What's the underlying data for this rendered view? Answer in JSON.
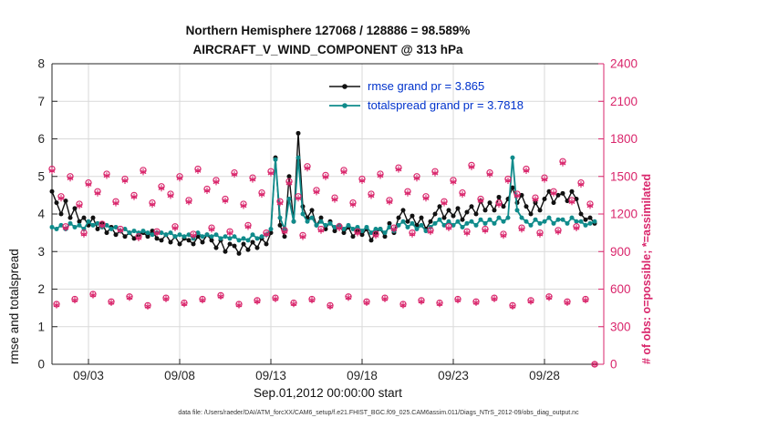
{
  "header": {
    "title_line1": "Northern Hemisphere 127068 / 128886 = 98.589%",
    "title_line2": "AIRCRAFT_V_WIND_COMPONENT @ 313 hPa"
  },
  "legend": {
    "rmse_label": "rmse grand pr = 3.865",
    "totalspread_label": "totalspread grand pr = 3.7818"
  },
  "axes": {
    "left_label": "rmse and totalspread",
    "right_label": "# of obs: o=possible; *=assimilated",
    "x_label": "Sep.01,2012 00:00:00 start",
    "left_ticks": [
      0,
      1,
      2,
      3,
      4,
      5,
      6,
      7,
      8
    ],
    "right_ticks": [
      0,
      300,
      600,
      900,
      1200,
      1500,
      1800,
      2100,
      2400
    ],
    "x_tick_days": [
      3,
      8,
      13,
      18,
      23,
      28
    ],
    "x_tick_labels": [
      "09/03",
      "09/08",
      "09/13",
      "09/18",
      "09/23",
      "09/28"
    ]
  },
  "footer": {
    "text": "data file: /Users/raeder/DAI/ATM_forcXX/CAM6_setup/f.e21.FHIST_BGC.f09_025.CAM6assim.011/Diags_NTrS_2012-09/obs_diag_output.nc"
  },
  "colors": {
    "rmse": "#111111",
    "totalspread": "#0f8b8b",
    "obs": "#d9256b",
    "legend_text": "#0033cc",
    "grid": "#d9d9d9",
    "axis": "#262626"
  },
  "chart_data": {
    "type": "line",
    "title": "Northern Hemisphere 127068 / 128886 = 98.589% — AIRCRAFT_V_WIND_COMPONENT @ 313 hPa",
    "x_axis": "time, Sep.01,2012 00:00:00 start, 6-hourly",
    "x_range_days": [
      1,
      31.25
    ],
    "x_start_day": 1,
    "x_step_days": 0.25,
    "left_ylim": [
      0,
      8
    ],
    "right_ylim": [
      0,
      2400
    ],
    "grid": true,
    "legend_position": "top-center-inside",
    "series": [
      {
        "name": "rmse",
        "axis": "left",
        "marker": "filled-circle",
        "color": "#111111",
        "grand_mean": 3.865,
        "values": [
          4.6,
          4.3,
          4.0,
          4.35,
          3.9,
          4.15,
          3.8,
          3.9,
          3.7,
          3.9,
          3.6,
          3.75,
          3.5,
          3.65,
          3.45,
          3.55,
          3.4,
          3.5,
          3.35,
          3.45,
          3.5,
          3.4,
          3.55,
          3.35,
          3.3,
          3.45,
          3.25,
          3.4,
          3.2,
          3.35,
          3.3,
          3.2,
          3.4,
          3.25,
          3.45,
          3.3,
          3.1,
          3.3,
          3.0,
          3.2,
          3.15,
          2.95,
          3.2,
          3.05,
          3.25,
          3.1,
          3.35,
          3.2,
          3.5,
          5.5,
          3.7,
          3.4,
          5.0,
          3.8,
          6.15,
          4.2,
          3.9,
          4.1,
          3.7,
          3.9,
          3.6,
          3.8,
          3.55,
          3.7,
          3.5,
          3.65,
          3.4,
          3.55,
          3.45,
          3.6,
          3.3,
          3.5,
          3.6,
          3.4,
          3.75,
          3.5,
          3.9,
          4.1,
          3.8,
          3.95,
          3.7,
          3.9,
          3.6,
          3.8,
          4.0,
          4.2,
          3.9,
          4.1,
          3.95,
          4.15,
          3.85,
          4.05,
          4.2,
          4.0,
          4.35,
          4.1,
          4.3,
          4.1,
          4.45,
          4.2,
          4.4,
          4.7,
          4.3,
          4.5,
          4.2,
          4.0,
          4.3,
          4.1,
          4.4,
          4.6,
          4.3,
          4.5,
          4.55,
          4.35,
          4.6,
          4.4,
          4.0,
          3.85,
          3.9,
          3.75
        ]
      },
      {
        "name": "totalspread",
        "axis": "left",
        "marker": "filled-circle",
        "color": "#0f8b8b",
        "grand_mean": 3.7818,
        "values": [
          3.65,
          3.6,
          3.7,
          3.6,
          3.75,
          3.65,
          3.7,
          3.6,
          3.8,
          3.7,
          3.75,
          3.65,
          3.7,
          3.6,
          3.65,
          3.55,
          3.6,
          3.5,
          3.55,
          3.5,
          3.55,
          3.5,
          3.45,
          3.5,
          3.5,
          3.45,
          3.5,
          3.4,
          3.45,
          3.4,
          3.45,
          3.35,
          3.5,
          3.4,
          3.45,
          3.4,
          3.45,
          3.35,
          3.4,
          3.35,
          3.4,
          3.3,
          3.35,
          3.3,
          3.45,
          3.35,
          3.4,
          3.45,
          3.6,
          5.45,
          3.9,
          3.6,
          4.4,
          3.8,
          5.5,
          4.0,
          3.8,
          3.9,
          3.7,
          3.8,
          3.7,
          3.75,
          3.65,
          3.7,
          3.6,
          3.7,
          3.6,
          3.65,
          3.55,
          3.65,
          3.5,
          3.6,
          3.6,
          3.5,
          3.65,
          3.55,
          3.7,
          3.8,
          3.65,
          3.75,
          3.6,
          3.7,
          3.55,
          3.65,
          3.75,
          3.85,
          3.7,
          3.8,
          3.7,
          3.8,
          3.65,
          3.75,
          3.8,
          3.7,
          3.85,
          3.75,
          3.85,
          3.75,
          3.9,
          3.8,
          3.9,
          5.5,
          4.1,
          3.9,
          3.8,
          3.7,
          3.85,
          3.75,
          3.8,
          3.9,
          3.75,
          3.85,
          3.85,
          3.75,
          3.9,
          3.8,
          3.8,
          3.7,
          3.75,
          3.8
        ]
      },
      {
        "name": "obs_possible",
        "axis": "right",
        "marker": "open-circle",
        "color": "#d9256b",
        "total": 128886,
        "values": [
          1560,
          480,
          1340,
          1100,
          1500,
          520,
          1280,
          1050,
          1450,
          560,
          1380,
          1120,
          1520,
          500,
          1300,
          1080,
          1480,
          540,
          1350,
          1020,
          1550,
          470,
          1290,
          1060,
          1420,
          530,
          1360,
          1100,
          1500,
          490,
          1310,
          1040,
          1560,
          520,
          1400,
          1090,
          1470,
          550,
          1320,
          1060,
          1530,
          480,
          1280,
          1110,
          1490,
          510,
          1370,
          1050,
          1540,
          530,
          1300,
          1070,
          1460,
          490,
          1340,
          1030,
          1580,
          520,
          1390,
          1080,
          1510,
          470,
          1330,
          1100,
          1550,
          540,
          1290,
          1060,
          1480,
          500,
          1360,
          1040,
          1520,
          530,
          1310,
          1090,
          1570,
          480,
          1380,
          1050,
          1500,
          510,
          1340,
          1070,
          1540,
          490,
          1300,
          1100,
          1470,
          520,
          1370,
          1060,
          1590,
          500,
          1320,
          1080,
          1530,
          530,
          1290,
          1040,
          1480,
          470,
          1360,
          1090,
          1560,
          510,
          1330,
          1050,
          1490,
          540,
          1380,
          1070,
          1620,
          500,
          1310,
          1100,
          1450,
          520,
          1280,
          0
        ]
      },
      {
        "name": "obs_assimilated",
        "axis": "right",
        "marker": "asterisk",
        "color": "#d9256b",
        "total": 127068,
        "values": [
          1545,
          472,
          1326,
          1088,
          1486,
          512,
          1266,
          1038,
          1436,
          552,
          1366,
          1108,
          1506,
          492,
          1287,
          1068,
          1466,
          532,
          1337,
          1008,
          1536,
          462,
          1276,
          1048,
          1406,
          522,
          1346,
          1088,
          1486,
          482,
          1297,
          1028,
          1546,
          512,
          1386,
          1078,
          1456,
          542,
          1306,
          1048,
          1516,
          472,
          1266,
          1098,
          1476,
          502,
          1356,
          1038,
          1526,
          522,
          1287,
          1058,
          1446,
          482,
          1326,
          1018,
          1566,
          512,
          1376,
          1068,
          1496,
          462,
          1316,
          1088,
          1536,
          532,
          1276,
          1048,
          1466,
          492,
          1346,
          1028,
          1506,
          522,
          1297,
          1078,
          1556,
          472,
          1366,
          1038,
          1486,
          502,
          1326,
          1058,
          1526,
          482,
          1287,
          1088,
          1456,
          512,
          1356,
          1048,
          1576,
          492,
          1306,
          1068,
          1516,
          522,
          1276,
          1028,
          1466,
          462,
          1346,
          1078,
          1546,
          502,
          1316,
          1038,
          1476,
          532,
          1366,
          1058,
          1606,
          492,
          1297,
          1088,
          1436,
          512,
          1266,
          0
        ]
      }
    ]
  }
}
